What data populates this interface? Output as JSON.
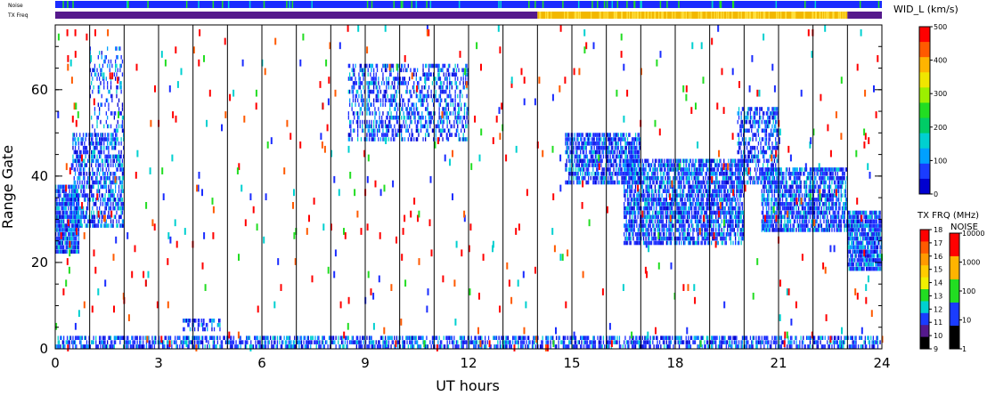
{
  "chart_data": {
    "type": "heatmap",
    "xlabel": "UT hours",
    "ylabel": "Range Gate",
    "xlim": [
      0,
      24
    ],
    "ylim": [
      0,
      75
    ],
    "x_ticks": [
      0,
      3,
      6,
      9,
      12,
      15,
      18,
      21,
      24
    ],
    "y_ticks": [
      0,
      20,
      40,
      60
    ],
    "vertical_lines_ut": [
      1,
      2,
      3,
      4,
      5,
      6,
      7,
      8,
      9,
      10,
      11,
      12,
      13,
      14,
      15,
      16,
      17,
      18,
      19,
      20,
      21,
      22,
      23
    ],
    "status_bars": {
      "noise_label": "Noise",
      "txfreq_label": "TX Freq",
      "txfreq_segments": [
        {
          "from": 0,
          "to": 14,
          "color": "#55198c"
        },
        {
          "from": 14,
          "to": 23,
          "color": "#f2b800"
        },
        {
          "from": 23,
          "to": 24,
          "color": "#55198c"
        }
      ]
    },
    "scatter_regions": [
      {
        "t0": 0.0,
        "t1": 0.7,
        "g0": 22,
        "g1": 38,
        "density": 0.9
      },
      {
        "t0": 0.5,
        "t1": 2.0,
        "g0": 28,
        "g1": 50,
        "density": 0.6
      },
      {
        "t0": 1.0,
        "t1": 2.0,
        "g0": 50,
        "g1": 70,
        "density": 0.25
      },
      {
        "t0": 8.5,
        "t1": 12.0,
        "g0": 48,
        "g1": 66,
        "density": 0.45
      },
      {
        "t0": 14.8,
        "t1": 17.0,
        "g0": 38,
        "g1": 50,
        "density": 0.7
      },
      {
        "t0": 16.5,
        "t1": 20.0,
        "g0": 24,
        "g1": 44,
        "density": 0.75
      },
      {
        "t0": 19.8,
        "t1": 21.0,
        "g0": 38,
        "g1": 56,
        "density": 0.55
      },
      {
        "t0": 20.5,
        "t1": 23.0,
        "g0": 27,
        "g1": 42,
        "density": 0.75
      },
      {
        "t0": 23.0,
        "t1": 24.0,
        "g0": 18,
        "g1": 32,
        "density": 0.85
      },
      {
        "t0": 0.0,
        "t1": 24.0,
        "g0": 0,
        "g1": 3,
        "density": 0.6
      },
      {
        "t0": 3.7,
        "t1": 4.8,
        "g0": 4,
        "g1": 7,
        "density": 0.5
      }
    ],
    "legend_width": {
      "label": "WID_L (km/s)",
      "ticks": [
        "500",
        "400",
        "300",
        "200",
        "100",
        "0"
      ],
      "colors": [
        "#ff0000",
        "#ff5a00",
        "#ffb400",
        "#f0e600",
        "#9cf000",
        "#22dd22",
        "#00cc66",
        "#00d0d0",
        "#00a0ff",
        "#1a3cff",
        "#0000d0"
      ]
    },
    "legend_txfrq": {
      "label": "TX FRQ (MHz)",
      "ticks": [
        "18",
        "17",
        "16",
        "15",
        "14",
        "13",
        "12",
        "11",
        "10",
        "9"
      ],
      "colors": [
        "#ff0000",
        "#ff5a00",
        "#ff9a00",
        "#ffcc00",
        "#f0f000",
        "#22dd22",
        "#00d0d0",
        "#1a3cff",
        "#55198c",
        "#000000"
      ]
    },
    "legend_noise": {
      "label": "NOISE",
      "ticks": [
        "10000",
        "1000",
        "100",
        "10",
        "1"
      ],
      "colors": [
        "#ff0000",
        "#ffb400",
        "#22dd22",
        "#1a3cff",
        "#000000"
      ]
    }
  }
}
